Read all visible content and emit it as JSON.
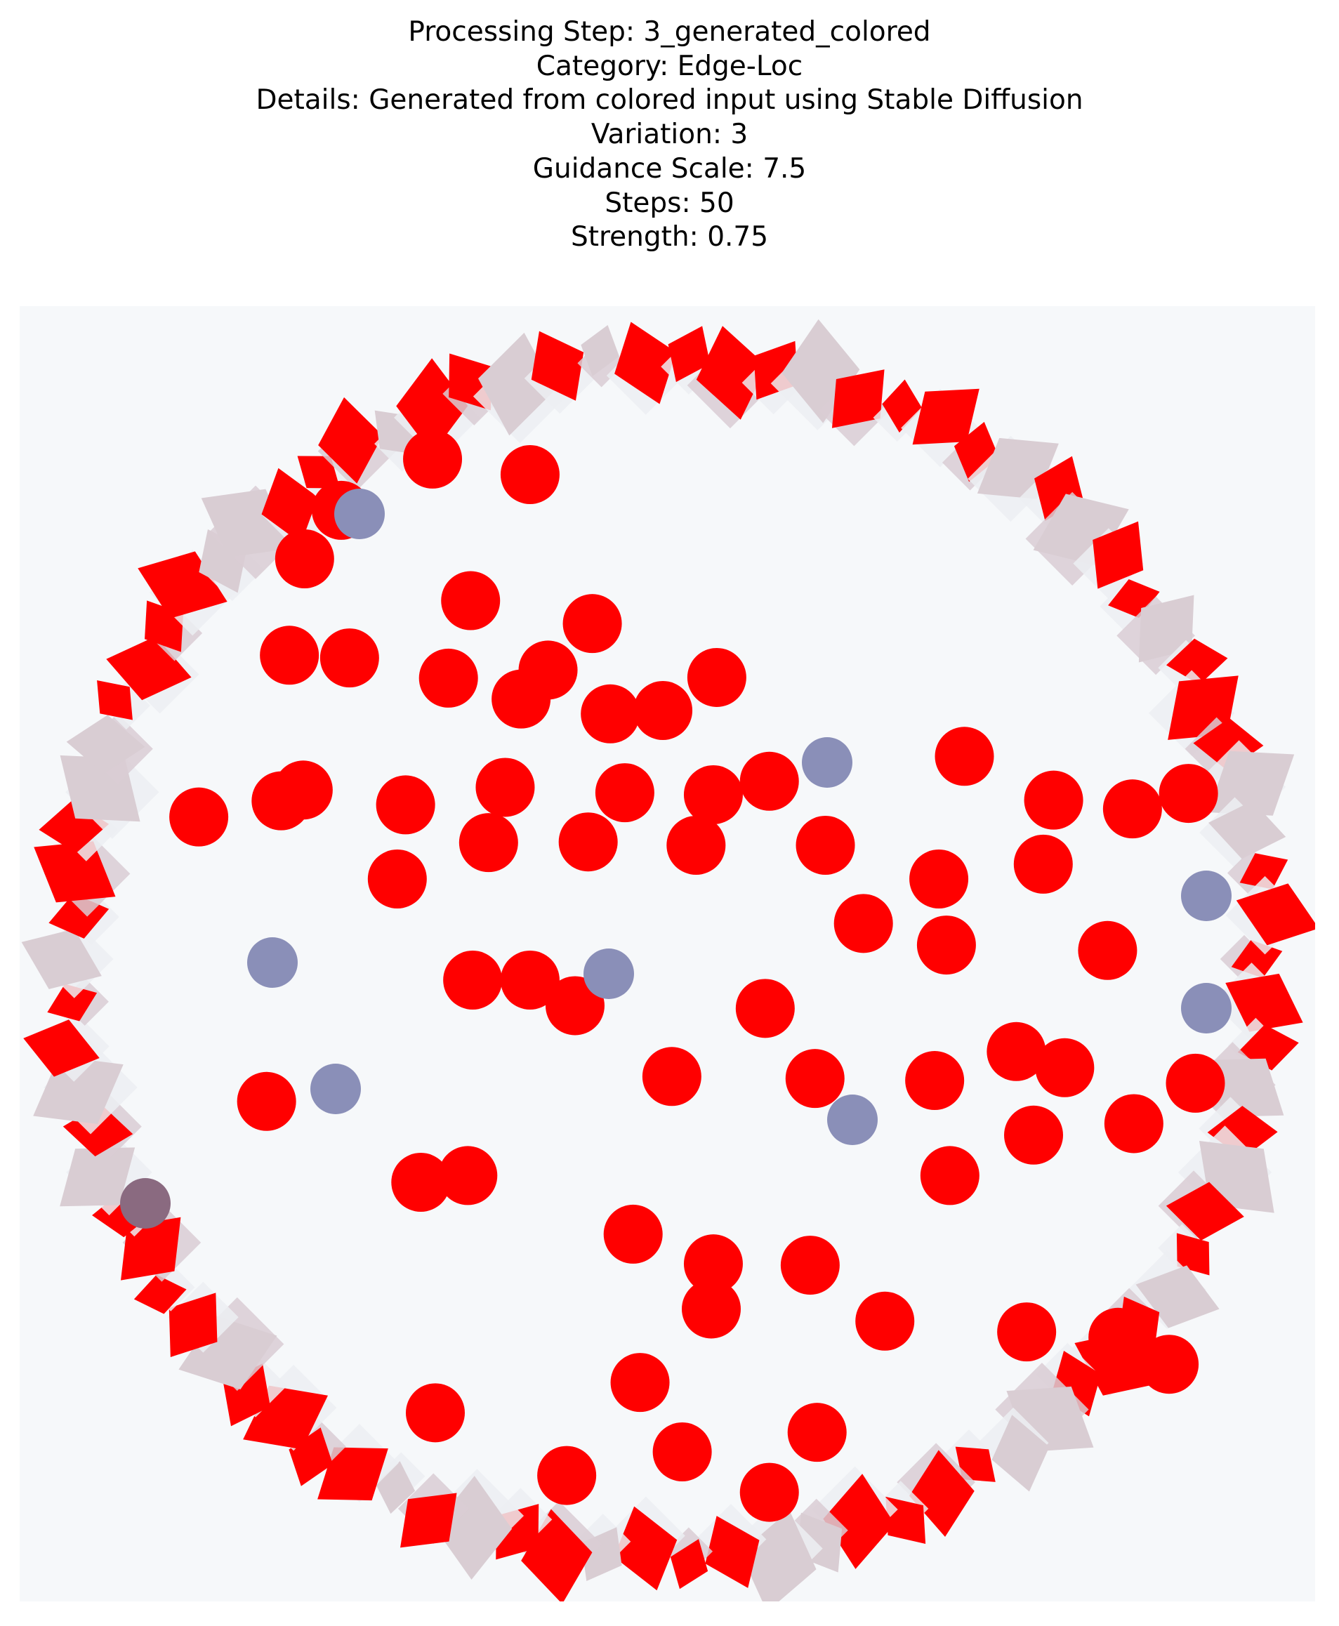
{
  "title_lines": [
    "Processing Step: 3_generated_colored",
    "Category: Edge-Loc",
    "Details: Generated from colored input using Stable Diffusion",
    "Variation: 3",
    "Guidance Scale: 7.5",
    "Steps: 50",
    "Strength: 0.75"
  ],
  "colors": {
    "background": "#f6f8fa",
    "edge_red": "#ff0000",
    "dot_red": "#ff0000",
    "dot_blue": "#8a8fb8",
    "dot_dark": "#8a6a80",
    "edge_shadow": "#d9cdd3",
    "edge_white": "#eceef2"
  }
}
